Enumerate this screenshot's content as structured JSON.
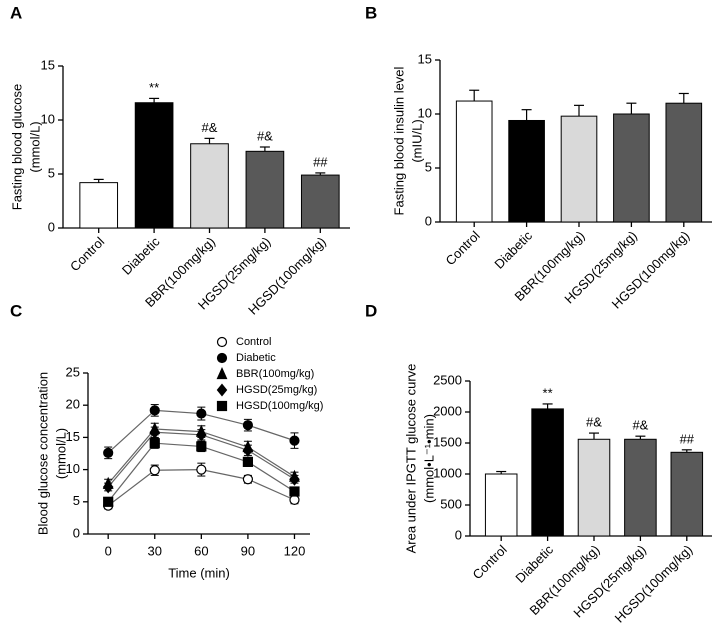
{
  "chart_data": [
    {
      "type": "bar",
      "panel_label": "A",
      "y_label": [
        "Fasting blood glucose",
        "(mmol/L)"
      ],
      "categories": [
        "Control",
        "Diabetic",
        "BBR(100mg/kg)",
        "HGSD(25mg/kg)",
        "HGSD(100mg/kg)"
      ],
      "values": [
        4.2,
        11.6,
        7.8,
        7.1,
        4.9
      ],
      "errors": [
        0.3,
        0.4,
        0.5,
        0.4,
        0.2
      ],
      "annotations": [
        null,
        "**",
        "#&",
        "#&",
        "##"
      ],
      "colors": [
        "#ffffff",
        "#000000",
        "#d9d9d9",
        "#595959",
        "#595959"
      ],
      "ylim": [
        0,
        15
      ],
      "yticks": [
        0,
        5,
        10,
        15
      ]
    },
    {
      "type": "bar",
      "panel_label": "B",
      "y_label": [
        "Fasting blood insulin level",
        "(mIU/L)"
      ],
      "categories": [
        "Control",
        "Diabetic",
        "BBR(100mg/kg)",
        "HGSD(25mg/kg)",
        "HGSD(100mg/kg)"
      ],
      "values": [
        11.2,
        9.4,
        9.8,
        10.0,
        11.0
      ],
      "errors": [
        1.0,
        1.0,
        1.0,
        1.0,
        0.9
      ],
      "colors": [
        "#ffffff",
        "#000000",
        "#d9d9d9",
        "#595959",
        "#595959"
      ],
      "ylim": [
        0,
        15
      ],
      "yticks": [
        0,
        5,
        10,
        15
      ]
    },
    {
      "type": "line",
      "panel_label": "C",
      "y_label": [
        "Blood glucose concentration",
        "(mmol/L)"
      ],
      "x_label": "Time (min)",
      "x": [
        0,
        30,
        60,
        90,
        120
      ],
      "xlim": [
        -13,
        130
      ],
      "xticks": [
        0,
        30,
        60,
        90,
        120
      ],
      "ylim": [
        0,
        25
      ],
      "yticks": [
        0,
        5,
        10,
        15,
        20,
        25
      ],
      "series": [
        {
          "name": "Control",
          "marker": "open-circle",
          "values": [
            4.4,
            9.9,
            10.0,
            8.5,
            5.3
          ],
          "errors": [
            0.5,
            0.8,
            1.0,
            0.6,
            0.6
          ]
        },
        {
          "name": "Diabetic",
          "marker": "circle",
          "values": [
            12.6,
            19.2,
            18.7,
            16.9,
            14.5
          ],
          "errors": [
            0.9,
            0.9,
            1.0,
            0.9,
            1.2
          ]
        },
        {
          "name": "BBR(100mg/kg)",
          "marker": "triangle",
          "values": [
            7.8,
            16.3,
            15.9,
            13.5,
            8.9
          ],
          "errors": [
            0.7,
            0.9,
            0.9,
            0.9,
            0.7
          ]
        },
        {
          "name": "HGSD(25mg/kg)",
          "marker": "diamond",
          "values": [
            7.3,
            15.8,
            15.4,
            13.0,
            8.5
          ],
          "errors": [
            0.6,
            0.8,
            0.8,
            0.8,
            0.6
          ]
        },
        {
          "name": "HGSD(100mg/kg)",
          "marker": "square",
          "values": [
            5.0,
            14.1,
            13.6,
            11.2,
            6.6
          ],
          "errors": [
            0.5,
            0.8,
            0.8,
            0.7,
            0.6
          ]
        }
      ]
    },
    {
      "type": "bar",
      "panel_label": "D",
      "y_label": [
        "Area under IPGTT glucose curve",
        "(mmol•L⁻¹•min)"
      ],
      "categories": [
        "Control",
        "Diabetic",
        "BBR(100mg/kg)",
        "HGSD(25mg/kg)",
        "HGSD(100mg/kg)"
      ],
      "values": [
        1000,
        2050,
        1560,
        1560,
        1350
      ],
      "errors": [
        40,
        80,
        100,
        50,
        40
      ],
      "annotations": [
        null,
        "**",
        "#&",
        "#&",
        "##"
      ],
      "colors": [
        "#ffffff",
        "#000000",
        "#d9d9d9",
        "#595959",
        "#595959"
      ],
      "ylim": [
        0,
        2500
      ],
      "yticks": [
        0,
        500,
        1000,
        1500,
        2000,
        2500
      ]
    }
  ]
}
